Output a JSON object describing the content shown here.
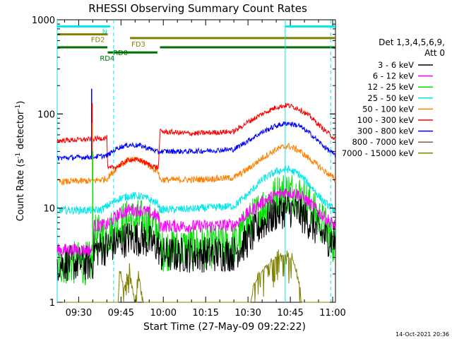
{
  "chart_data": {
    "type": "line",
    "title": "RHESSI Observing Summary Count Rates",
    "xlabel": "Start Time (27-May-09 09:22:22)",
    "ylabel_main": "Count Rate (s",
    "ylabel_sup1": "-1",
    "ylabel_mid": " detector",
    "ylabel_sup2": "-1",
    "ylabel_end": ")",
    "yscale": "log",
    "ylim": [
      1,
      1000
    ],
    "xlim_min": [
      22.4,
      121
    ],
    "y_ticks": [
      {
        "v": 1,
        "label": "1"
      },
      {
        "v": 10,
        "label": "10"
      },
      {
        "v": 100,
        "label": "100"
      },
      {
        "v": 1000,
        "label": "1000"
      }
    ],
    "x_ticks": [
      {
        "v": 30,
        "label": "09:30"
      },
      {
        "v": 45,
        "label": "09:45"
      },
      {
        "v": 60,
        "label": "10:00"
      },
      {
        "v": 75,
        "label": "10:15"
      },
      {
        "v": 90,
        "label": "10:30"
      },
      {
        "v": 105,
        "label": "10:45"
      },
      {
        "v": 120,
        "label": "11:00"
      }
    ],
    "legend_header1": "Det 1,3,4,5,6,9,",
    "legend_header2": "Att 0",
    "legend_position": "right",
    "timestamp": "14-Oct-2021 20:36",
    "vlines": [
      {
        "x": 22.4,
        "color": "#00e8e8",
        "style": "solid"
      },
      {
        "x": 42.4,
        "color": "#00e8e8",
        "style": "dashed"
      },
      {
        "x": 103.2,
        "color": "#00e8e8",
        "style": "solid"
      },
      {
        "x": 119.3,
        "color": "#00e8e8",
        "style": "dashed"
      }
    ],
    "flags": [
      {
        "label": "N",
        "color": "#00e8e8",
        "segments": [
          [
            22.4,
            41.2
          ],
          [
            103.3,
            121
          ]
        ],
        "level": 850
      },
      {
        "label": "FD2",
        "color": "#808000",
        "segments": [
          [
            22.4,
            40.3
          ]
        ],
        "level": 700
      },
      {
        "label": "FD3",
        "color": "#808000",
        "segments": [
          [
            48.2,
            121
          ]
        ],
        "level": 640
      },
      {
        "label": "RD0",
        "color": "#007000",
        "segments": [
          [
            22.4,
            40.2
          ],
          [
            58.8,
            121
          ]
        ],
        "level": 510
      },
      {
        "label": "RD4",
        "color": "#007000",
        "segments": [
          [
            40.3,
            57.9
          ]
        ],
        "level": 450
      }
    ],
    "series": [
      {
        "name": "3 - 6 keV",
        "color": "#000000",
        "points": [
          [
            22.4,
            2.6
          ],
          [
            35,
            2.6
          ],
          [
            35.4,
            3.6
          ],
          [
            40,
            3.8
          ],
          [
            44,
            4.4
          ],
          [
            48,
            4.8
          ],
          [
            52,
            4.8
          ],
          [
            56,
            4.2
          ],
          [
            58.3,
            3.9
          ],
          [
            58.8,
            3.2
          ],
          [
            70,
            3.2
          ],
          [
            85,
            3.3
          ],
          [
            90,
            4.6
          ],
          [
            95,
            6.8
          ],
          [
            100,
            8.8
          ],
          [
            104,
            9.8
          ],
          [
            108,
            9
          ],
          [
            112,
            7
          ],
          [
            117,
            5
          ],
          [
            121,
            4.4
          ]
        ],
        "noise": 0.28
      },
      {
        "name": "6 - 12 keV",
        "color": "#ff00ff",
        "points": [
          [
            22.4,
            3.6
          ],
          [
            35,
            3.6
          ],
          [
            35.4,
            6.5
          ],
          [
            40,
            6.6
          ],
          [
            44,
            8.5
          ],
          [
            48,
            9.6
          ],
          [
            52,
            9.5
          ],
          [
            56,
            8.7
          ],
          [
            58.3,
            8
          ],
          [
            58.8,
            6.5
          ],
          [
            70,
            6.4
          ],
          [
            85,
            6.6
          ],
          [
            90,
            8.8
          ],
          [
            95,
            11.5
          ],
          [
            100,
            13.8
          ],
          [
            104,
            15
          ],
          [
            108,
            14
          ],
          [
            112,
            11.2
          ],
          [
            117,
            8
          ],
          [
            121,
            6.5
          ]
        ],
        "noise": 0.1
      },
      {
        "name": "12 - 25 keV",
        "color": "#00e000",
        "points": [
          [
            22.4,
            2.6
          ],
          [
            35,
            2.6
          ],
          [
            35.4,
            5
          ],
          [
            40,
            5.2
          ],
          [
            44,
            6.5
          ],
          [
            48,
            7.5
          ],
          [
            52,
            7.3
          ],
          [
            56,
            6.5
          ],
          [
            58.3,
            6
          ],
          [
            58.8,
            3.6
          ],
          [
            70,
            3.8
          ],
          [
            85,
            4
          ],
          [
            90,
            6.6
          ],
          [
            95,
            10
          ],
          [
            100,
            13.5
          ],
          [
            104,
            15
          ],
          [
            108,
            14
          ],
          [
            112,
            10.5
          ],
          [
            117,
            6.5
          ],
          [
            121,
            4
          ]
        ],
        "noise": 0.34
      },
      {
        "name": "25 - 50 keV",
        "color": "#00e8e8",
        "points": [
          [
            22.4,
            9.5
          ],
          [
            35,
            9.5
          ],
          [
            38,
            9.6
          ],
          [
            44,
            12.5
          ],
          [
            48,
            13.5
          ],
          [
            52,
            13.4
          ],
          [
            56,
            12
          ],
          [
            58.3,
            11
          ],
          [
            58.8,
            9.6
          ],
          [
            70,
            9.8
          ],
          [
            85,
            10.5
          ],
          [
            90,
            14
          ],
          [
            95,
            20
          ],
          [
            100,
            24.5
          ],
          [
            104,
            26
          ],
          [
            108,
            23
          ],
          [
            112,
            17.5
          ],
          [
            117,
            11.5
          ],
          [
            121,
            9.5
          ]
        ],
        "noise": 0.06
      },
      {
        "name": "50 - 100 keV",
        "color": "#ff8000",
        "points": [
          [
            22.4,
            19
          ],
          [
            35,
            19.5
          ],
          [
            40,
            20.5
          ],
          [
            44,
            28
          ],
          [
            48,
            33
          ],
          [
            52,
            32
          ],
          [
            56,
            27
          ],
          [
            58.3,
            24.5
          ],
          [
            58.8,
            20
          ],
          [
            70,
            20
          ],
          [
            85,
            21
          ],
          [
            90,
            26
          ],
          [
            95,
            34
          ],
          [
            100,
            42
          ],
          [
            104,
            46
          ],
          [
            108,
            41
          ],
          [
            112,
            33
          ],
          [
            117,
            25
          ],
          [
            121,
            20
          ]
        ],
        "noise": 0.05
      },
      {
        "name": "100 - 300 keV",
        "color": "#ff0000",
        "points": [
          [
            22.4,
            52
          ],
          [
            35,
            54
          ],
          [
            40,
            56
          ],
          [
            40.3,
            26
          ],
          [
            44,
            28
          ],
          [
            48,
            33
          ],
          [
            52,
            32
          ],
          [
            56,
            28
          ],
          [
            58.3,
            27
          ],
          [
            58.8,
            65
          ],
          [
            70,
            62
          ],
          [
            85,
            65
          ],
          [
            90,
            82
          ],
          [
            95,
            100
          ],
          [
            100,
            118
          ],
          [
            104,
            124
          ],
          [
            108,
            114
          ],
          [
            112,
            94
          ],
          [
            117,
            68
          ],
          [
            121,
            54
          ]
        ],
        "noise": 0.04
      },
      {
        "name": "300 - 800 keV",
        "color": "#0000ff",
        "points": [
          [
            22.4,
            34
          ],
          [
            35,
            35
          ],
          [
            40,
            36
          ],
          [
            44,
            44
          ],
          [
            48,
            47
          ],
          [
            52,
            46
          ],
          [
            56,
            42
          ],
          [
            58.3,
            39
          ],
          [
            58.8,
            40
          ],
          [
            70,
            40
          ],
          [
            85,
            42
          ],
          [
            90,
            52
          ],
          [
            95,
            64
          ],
          [
            100,
            75
          ],
          [
            104,
            80
          ],
          [
            108,
            75
          ],
          [
            112,
            62
          ],
          [
            117,
            45
          ],
          [
            121,
            36
          ]
        ],
        "noise": 0.04
      },
      {
        "name": "800 - 7000 keV",
        "color": "#8b5a2b",
        "points": [],
        "noise": 0
      },
      {
        "name": "7000 - 15000 keV",
        "color": "#808000",
        "points": [
          [
            22.4,
            1
          ],
          [
            44,
            1
          ],
          [
            44.5,
            2.2
          ],
          [
            46,
            1.4
          ],
          [
            48,
            2.2
          ],
          [
            50,
            1
          ],
          [
            51,
            2.2
          ],
          [
            53,
            1
          ],
          [
            91,
            1
          ],
          [
            92,
            1.5
          ],
          [
            96,
            2.4
          ],
          [
            100,
            3
          ],
          [
            103,
            3.2
          ],
          [
            106,
            2.8
          ],
          [
            108,
            1.6
          ],
          [
            109,
            1
          ],
          [
            121,
            1
          ]
        ],
        "noise": 0.25
      }
    ],
    "spikes": [
      {
        "series": 6,
        "x": 34.6,
        "y": 185
      },
      {
        "series": 5,
        "x": 34.8,
        "y": 130
      },
      {
        "series": 4,
        "x": 34.9,
        "y": 80
      },
      {
        "series": 2,
        "x": 35.0,
        "y": 40
      }
    ]
  }
}
